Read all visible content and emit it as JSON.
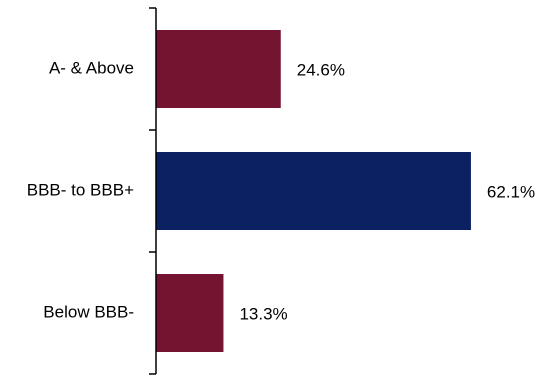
{
  "chart_data": {
    "type": "bar",
    "orientation": "horizontal",
    "title": "",
    "xlabel": "",
    "ylabel": "",
    "xlim": [
      0,
      70
    ],
    "grid": false,
    "legend": "none",
    "categories": [
      "A- & Above",
      "BBB- to BBB+",
      "Below BBB-"
    ],
    "values": [
      24.6,
      62.1,
      13.3
    ],
    "value_labels": [
      "24.6%",
      "62.1%",
      "13.3%"
    ],
    "bar_colors": [
      "#741431",
      "#0b2161",
      "#741431"
    ]
  }
}
